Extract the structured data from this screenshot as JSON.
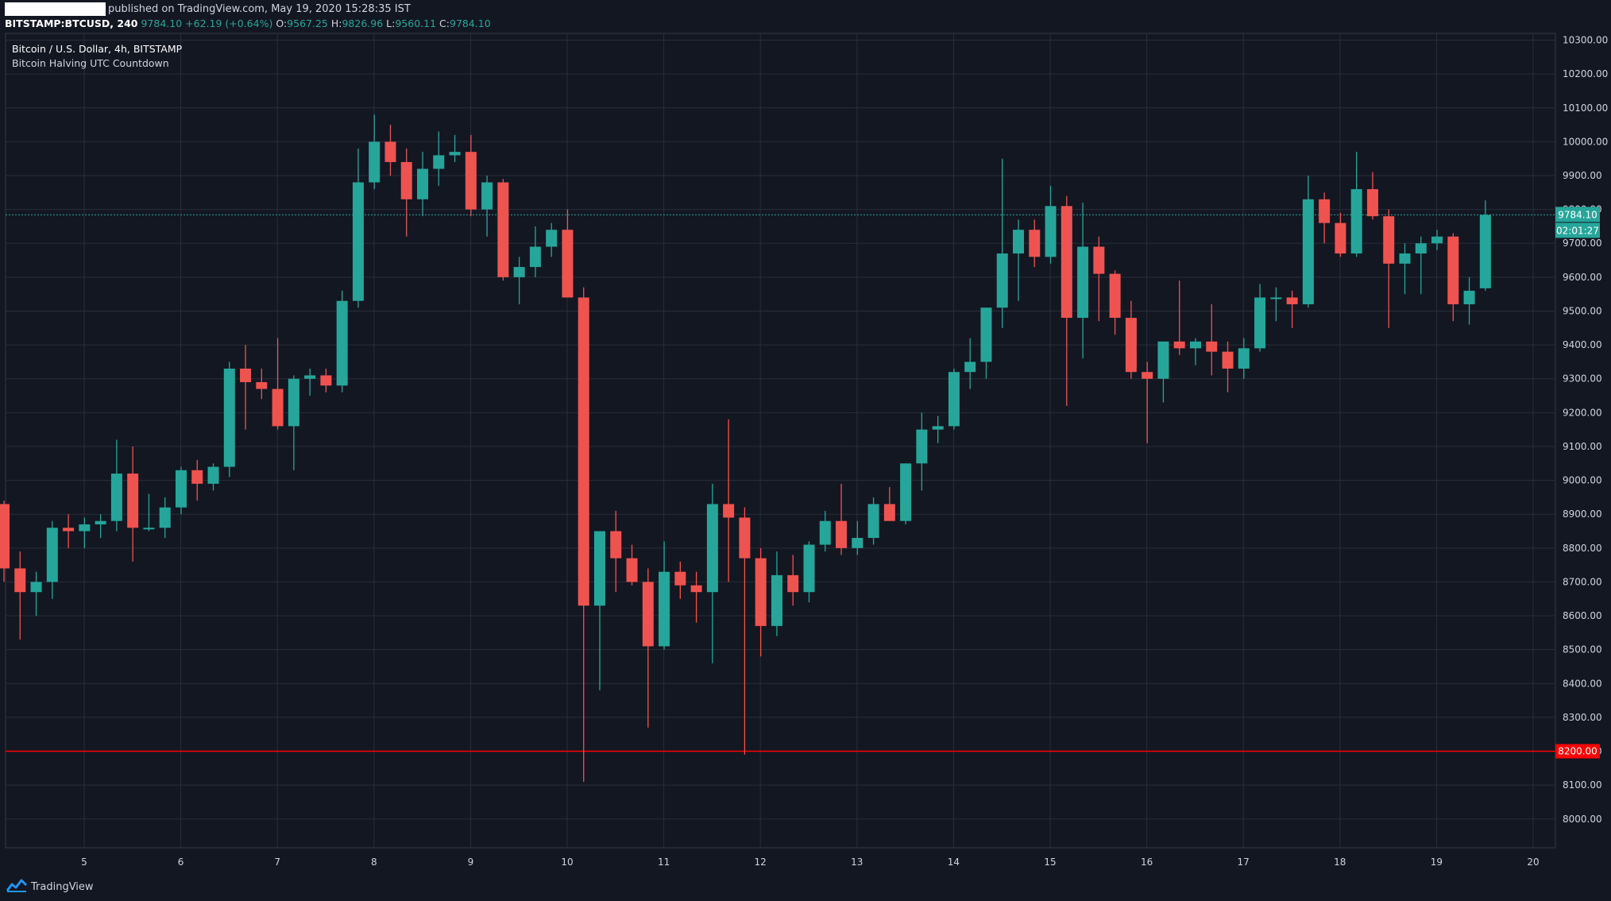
{
  "header": {
    "published_text": "published on TradingView.com, May 19, 2020 15:28:35 IST",
    "symbol": "BITSTAMP:BTCUSD, 240",
    "last": "9784.10",
    "change": "+62.19 (+0.64%)",
    "open_label": "O:",
    "open": "9567.25",
    "high_label": "H:",
    "high": "9826.96",
    "low_label": "L:",
    "low": "9560.11",
    "close_label": "C:",
    "close": "9784.10"
  },
  "legend": {
    "title": "Bitcoin / U.S. Dollar, 4h, BITSTAMP",
    "indicator": "Bitcoin Halving UTC Countdown"
  },
  "footer": {
    "brand": "TradingView",
    "brand_icon": "tradingview-logo-icon"
  },
  "colors": {
    "background": "#131722",
    "grid": "#2a2e39",
    "up": "#26a69a",
    "down": "#ef5350",
    "level": "#ff0000"
  },
  "chart_data": {
    "type": "candlestick",
    "x_ticks": [
      "5",
      "6",
      "7",
      "8",
      "9",
      "10",
      "11",
      "12",
      "13",
      "14",
      "15",
      "16",
      "17",
      "18",
      "19",
      "20"
    ],
    "y_ticks": [
      "10300.00",
      "10200.00",
      "10100.00",
      "10000.00",
      "9900.00",
      "9800.00",
      "9700.00",
      "9600.00",
      "9500.00",
      "9400.00",
      "9300.00",
      "9200.00",
      "9100.00",
      "9000.00",
      "8900.00",
      "8800.00",
      "8700.00",
      "8600.00",
      "8500.00",
      "8400.00",
      "8300.00",
      "8200.00",
      "8100.00",
      "8000.00"
    ],
    "ylim": [
      7915,
      10320
    ],
    "grid": true,
    "current_price": {
      "value": 9784.1,
      "label": "9784.10",
      "countdown": "02:01:27"
    },
    "horizontal_level": {
      "value": 8200,
      "label": "8200.00"
    },
    "candles": [
      [
        8930,
        8940,
        8700,
        8740
      ],
      [
        8740,
        8790,
        8530,
        8670
      ],
      [
        8670,
        8730,
        8600,
        8700
      ],
      [
        8700,
        8880,
        8650,
        8860
      ],
      [
        8860,
        8900,
        8800,
        8850
      ],
      [
        8850,
        8890,
        8800,
        8870
      ],
      [
        8870,
        8900,
        8830,
        8880
      ],
      [
        8880,
        9120,
        8850,
        9020
      ],
      [
        9020,
        9100,
        8760,
        8860
      ],
      [
        8860,
        8960,
        8850,
        8860
      ],
      [
        8860,
        8950,
        8830,
        8920
      ],
      [
        8920,
        9040,
        8900,
        9030
      ],
      [
        9030,
        9060,
        8940,
        8990
      ],
      [
        8990,
        9050,
        8970,
        9040
      ],
      [
        9040,
        9350,
        9010,
        9330
      ],
      [
        9330,
        9400,
        9150,
        9290
      ],
      [
        9290,
        9330,
        9240,
        9270
      ],
      [
        9270,
        9420,
        9150,
        9160
      ],
      [
        9160,
        9310,
        9030,
        9300
      ],
      [
        9300,
        9330,
        9250,
        9310
      ],
      [
        9310,
        9330,
        9260,
        9280
      ],
      [
        9280,
        9560,
        9260,
        9530
      ],
      [
        9530,
        9980,
        9510,
        9880
      ],
      [
        9880,
        10080,
        9860,
        10000
      ],
      [
        10000,
        10050,
        9900,
        9940
      ],
      [
        9940,
        9980,
        9720,
        9830
      ],
      [
        9830,
        9970,
        9780,
        9920
      ],
      [
        9920,
        10030,
        9870,
        9960
      ],
      [
        9960,
        10020,
        9940,
        9970
      ],
      [
        9970,
        10020,
        9780,
        9800
      ],
      [
        9800,
        9900,
        9720,
        9880
      ],
      [
        9880,
        9890,
        9590,
        9600
      ],
      [
        9600,
        9660,
        9520,
        9630
      ],
      [
        9630,
        9750,
        9600,
        9690
      ],
      [
        9690,
        9760,
        9660,
        9740
      ],
      [
        9740,
        9800,
        9540,
        9540
      ],
      [
        9540,
        9570,
        8110,
        8630
      ],
      [
        8630,
        8850,
        8380,
        8850
      ],
      [
        8850,
        8910,
        8670,
        8770
      ],
      [
        8770,
        8810,
        8690,
        8700
      ],
      [
        8700,
        8740,
        8270,
        8510
      ],
      [
        8510,
        8820,
        8500,
        8730
      ],
      [
        8730,
        8760,
        8650,
        8690
      ],
      [
        8690,
        8730,
        8580,
        8670
      ],
      [
        8670,
        8990,
        8460,
        8930
      ],
      [
        8930,
        9180,
        8700,
        8890
      ],
      [
        8890,
        8920,
        8190,
        8770
      ],
      [
        8770,
        8800,
        8480,
        8570
      ],
      [
        8570,
        8790,
        8540,
        8720
      ],
      [
        8720,
        8780,
        8630,
        8670
      ],
      [
        8670,
        8820,
        8640,
        8810
      ],
      [
        8810,
        8910,
        8790,
        8880
      ],
      [
        8880,
        8990,
        8780,
        8800
      ],
      [
        8800,
        8880,
        8780,
        8830
      ],
      [
        8830,
        8950,
        8810,
        8930
      ],
      [
        8930,
        8980,
        8900,
        8880
      ],
      [
        8880,
        9050,
        8870,
        9050
      ],
      [
        9050,
        9200,
        8970,
        9150
      ],
      [
        9150,
        9190,
        9110,
        9160
      ],
      [
        9160,
        9330,
        9150,
        9320
      ],
      [
        9320,
        9420,
        9270,
        9350
      ],
      [
        9350,
        9510,
        9300,
        9510
      ],
      [
        9510,
        9950,
        9450,
        9670
      ],
      [
        9670,
        9770,
        9530,
        9740
      ],
      [
        9740,
        9770,
        9630,
        9660
      ],
      [
        9660,
        9870,
        9640,
        9810
      ],
      [
        9810,
        9840,
        9220,
        9480
      ],
      [
        9480,
        9820,
        9360,
        9690
      ],
      [
        9690,
        9720,
        9470,
        9610
      ],
      [
        9610,
        9620,
        9430,
        9480
      ],
      [
        9480,
        9530,
        9300,
        9320
      ],
      [
        9320,
        9350,
        9110,
        9300
      ],
      [
        9300,
        9410,
        9230,
        9410
      ],
      [
        9410,
        9590,
        9370,
        9390
      ],
      [
        9390,
        9420,
        9340,
        9410
      ],
      [
        9410,
        9520,
        9310,
        9380
      ],
      [
        9380,
        9410,
        9260,
        9330
      ],
      [
        9330,
        9420,
        9300,
        9390
      ],
      [
        9390,
        9580,
        9380,
        9540
      ],
      [
        9540,
        9570,
        9470,
        9540
      ],
      [
        9540,
        9560,
        9450,
        9520
      ],
      [
        9520,
        9900,
        9510,
        9830
      ],
      [
        9830,
        9850,
        9700,
        9760
      ],
      [
        9760,
        9790,
        9660,
        9670
      ],
      [
        9670,
        9970,
        9660,
        9860
      ],
      [
        9860,
        9910,
        9770,
        9780
      ],
      [
        9780,
        9800,
        9450,
        9640
      ],
      [
        9640,
        9700,
        9550,
        9670
      ],
      [
        9670,
        9720,
        9550,
        9700
      ],
      [
        9700,
        9740,
        9680,
        9720
      ],
      [
        9720,
        9730,
        9470,
        9520
      ],
      [
        9520,
        9600,
        9460,
        9560
      ],
      [
        9567.25,
        9826.96,
        9560.11,
        9784.1
      ]
    ]
  }
}
